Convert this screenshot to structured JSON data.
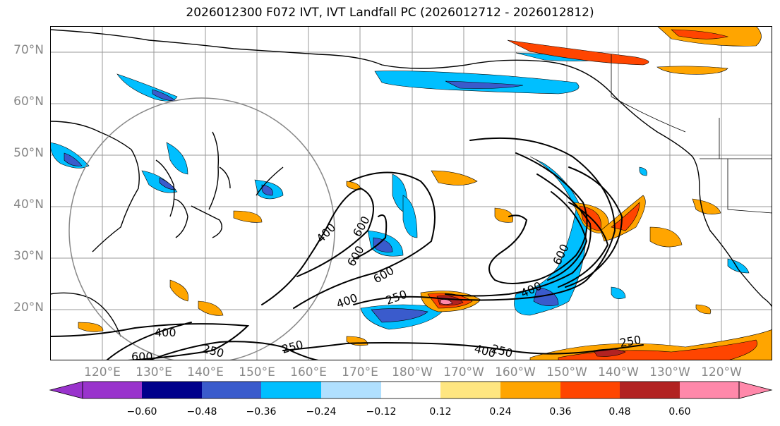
{
  "title": "2026012300 F072 IVT, IVT Landfall PC (2026012712 - 2026012812)",
  "lat_labels": [
    "70°N",
    "60°N",
    "50°N",
    "40°N",
    "30°N",
    "20°N"
  ],
  "lon_labels": [
    "120°E",
    "130°E",
    "140°E",
    "150°E",
    "160°E",
    "170°E",
    "180°W",
    "170°W",
    "160°W",
    "150°W",
    "140°W",
    "130°W",
    "120°W"
  ],
  "contour_labels": [
    "400",
    "600",
    "400",
    "600",
    "250",
    "400",
    "600",
    "400",
    "600",
    "400",
    "250",
    "250",
    "250",
    "600",
    "250"
  ],
  "colorbar": {
    "tick_labels": [
      "−0.60",
      "−0.48",
      "−0.36",
      "−0.24",
      "−0.12",
      "0.12",
      "0.24",
      "0.36",
      "0.48",
      "0.60"
    ],
    "colors": [
      "#9933cc",
      "#00008b",
      "#3a5bcc",
      "#00bfff",
      "#b0e0ff",
      "#ffffff",
      "#ffe680",
      "#ffa500",
      "#ff4500",
      "#b22222",
      "#ff88aa"
    ]
  },
  "palette": {
    "violet": "#9933cc",
    "navy": "#00008b",
    "royal": "#3a5bcc",
    "deepsky": "#00bfff",
    "lightblue": "#b0e0ff",
    "yellow": "#ffe680",
    "orange": "#ffa500",
    "orangered": "#ff4500",
    "firebrick": "#b22222",
    "pink": "#ff88aa"
  }
}
